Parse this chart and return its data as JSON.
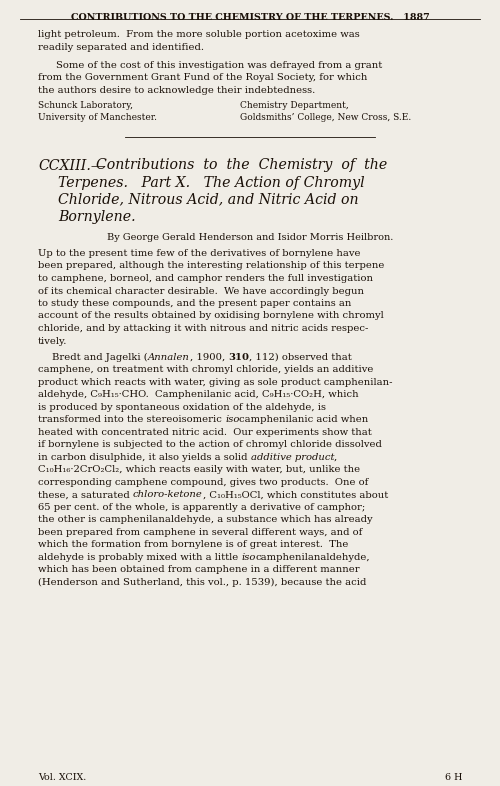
{
  "bg_color": "#f0ede6",
  "text_color": "#1a1008",
  "header": "CONTRIBUTIONS TO THE CHEMISTRY OF THE TERPENES.   1887",
  "affil_left_1": "Schunck Laboratory,",
  "affil_left_2": "University of Manchester.",
  "affil_right_1": "Chemistry Department,",
  "affil_right_2": "Goldsmiths’ College, New Cross, S.E.",
  "footer_left": "Vol. XCIX.",
  "footer_right": "6 H"
}
